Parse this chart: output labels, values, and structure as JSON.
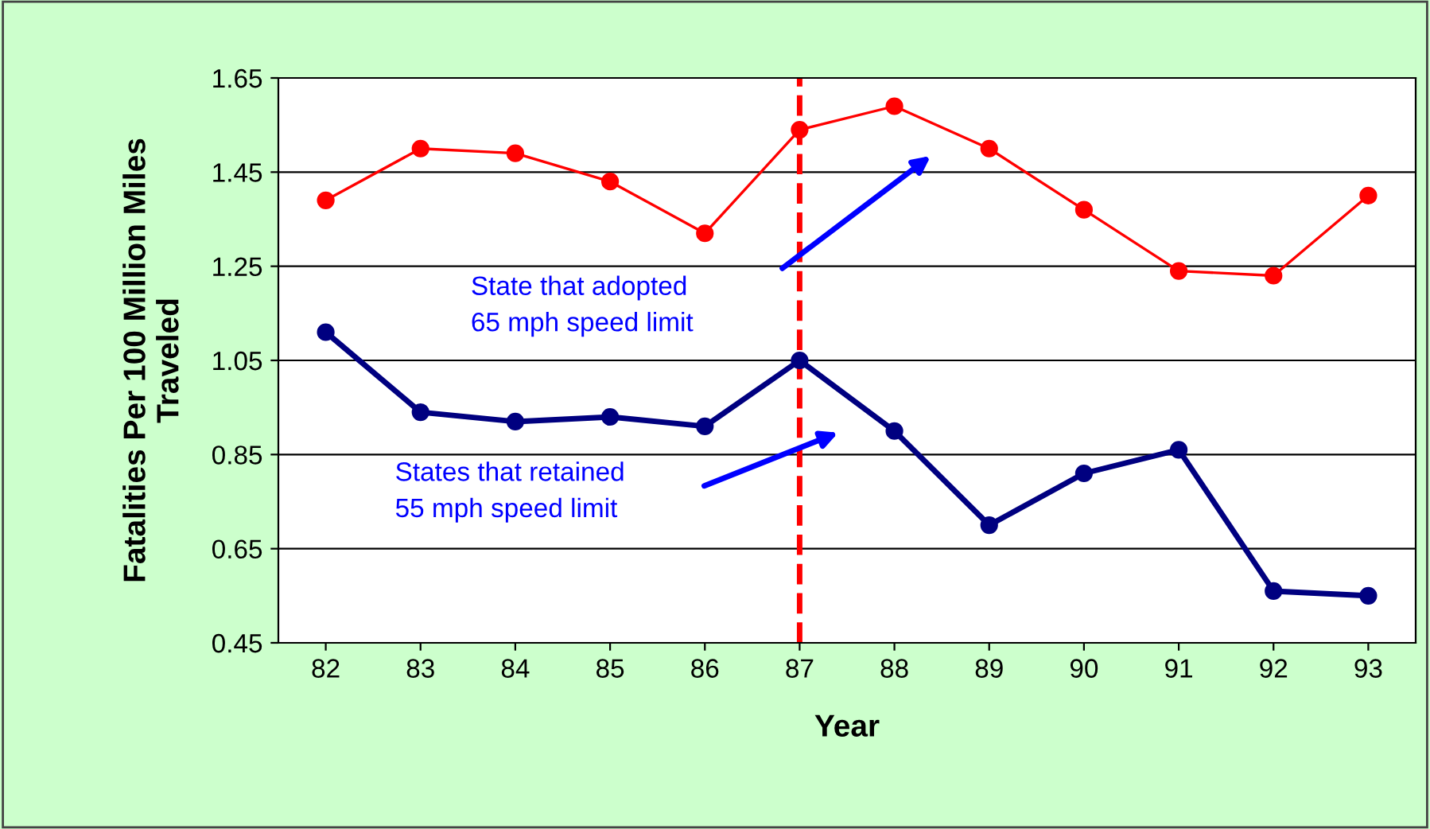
{
  "chart_data": {
    "type": "line",
    "xlabel": "Year",
    "ylabel": "Fatalities Per 100 Million Miles\nTraveled",
    "categories": [
      "82",
      "83",
      "84",
      "85",
      "86",
      "87",
      "88",
      "89",
      "90",
      "91",
      "92",
      "93"
    ],
    "series": [
      {
        "color": "#ff0000",
        "values": [
          1.39,
          1.5,
          1.49,
          1.43,
          1.32,
          1.54,
          1.59,
          1.5,
          1.37,
          1.24,
          1.23,
          1.4
        ]
      },
      {
        "color": "#000080",
        "values": [
          1.11,
          0.94,
          0.92,
          0.93,
          0.91,
          1.05,
          0.9,
          0.7,
          0.81,
          0.86,
          0.56,
          0.55
        ]
      }
    ],
    "ylim": [
      0.45,
      1.65
    ],
    "yticks": [
      0.45,
      0.65,
      0.85,
      1.05,
      1.25,
      1.45,
      1.65
    ],
    "grid": "y",
    "legend": false,
    "marker": "circle",
    "ref_lines": [
      {
        "axis": "x",
        "value": "87",
        "color": "#ff0000",
        "line_style": "dashed"
      }
    ],
    "annotations": [
      "State that adopted\n65 mph speed limit",
      "States that retained\n55 mph speed limit"
    ]
  }
}
